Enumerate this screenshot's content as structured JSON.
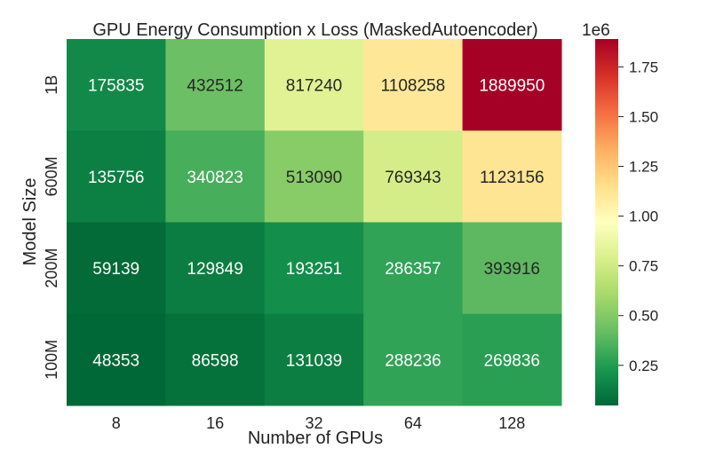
{
  "chart_data": {
    "type": "heatmap",
    "title": "GPU Energy Consumption x Loss (MaskedAutoencoder)",
    "xlabel": "Number of GPUs",
    "ylabel": "Model Size",
    "x_categories": [
      "8",
      "16",
      "32",
      "64",
      "128"
    ],
    "y_categories": [
      "1B",
      "600M",
      "200M",
      "100M"
    ],
    "values": [
      [
        175835,
        432512,
        817240,
        1108258,
        1889950
      ],
      [
        135756,
        340823,
        513090,
        769343,
        1123156
      ],
      [
        59139,
        129849,
        193251,
        286357,
        393916
      ],
      [
        48353,
        86598,
        131039,
        288236,
        269836
      ]
    ],
    "cell_labels": [
      [
        "175835",
        "432512",
        "817240",
        "1108258",
        "1889950"
      ],
      [
        "135756",
        "340823",
        "513090",
        "769343",
        "1123156"
      ],
      [
        "59139",
        "129849",
        "193251",
        "286357",
        "393916"
      ],
      [
        "48353",
        "86598",
        "131039",
        "288236",
        "269836"
      ]
    ],
    "colormap": "RdYlGn_r",
    "colorbar": {
      "vmin": 48353,
      "vmax": 1889950,
      "ticks": [
        0.25,
        0.5,
        0.75,
        1.0,
        1.25,
        1.5,
        1.75
      ],
      "tick_labels": [
        "0.25",
        "0.50",
        "0.75",
        "1.00",
        "1.25",
        "1.50",
        "1.75"
      ],
      "scale_label": "1e6"
    }
  }
}
